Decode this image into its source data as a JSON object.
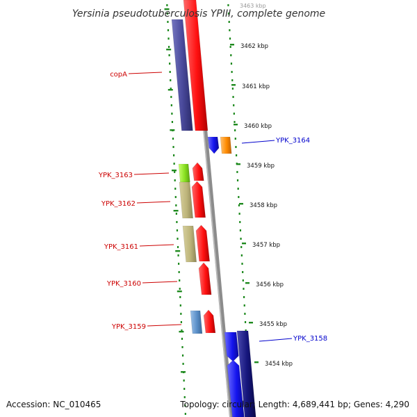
{
  "title": "Yersinia pseudotuberculosis YPIII, complete genome",
  "footer": {
    "accession": "Accession: NC_010465",
    "summary": "Topology: circular; Length: 4,689,441 bp; Genes: 4,290"
  },
  "colors": {
    "backbone": "#8c8c8c",
    "tick": "#1f8a1f",
    "label_forward": "#cc0000",
    "label_reverse": "#0000cc",
    "gene_red": "#ff1010",
    "gene_navy": "#3b3b8c",
    "gene_khaki": "#bdb47a",
    "gene_lime": "#99ee22",
    "gene_blue": "#1414ee",
    "gene_darkblue": "#14147a",
    "gene_orange": "#ff8c00",
    "gene_steel": "#5b8fc8"
  },
  "scale": {
    "top_partial": "3463 kbp",
    "ticks": [
      "3462 kbp",
      "3461 kbp",
      "3460 kbp",
      "3459 kbp",
      "3458 kbp",
      "3457 kbp",
      "3456 kbp",
      "3455 kbp",
      "3454 kbp"
    ]
  },
  "genes_left": [
    "copA",
    "YPK_3163",
    "YPK_3162",
    "YPK_3161",
    "YPK_3160",
    "YPK_3159"
  ],
  "genes_right": [
    "YPK_3164",
    "YPK_3158"
  ]
}
